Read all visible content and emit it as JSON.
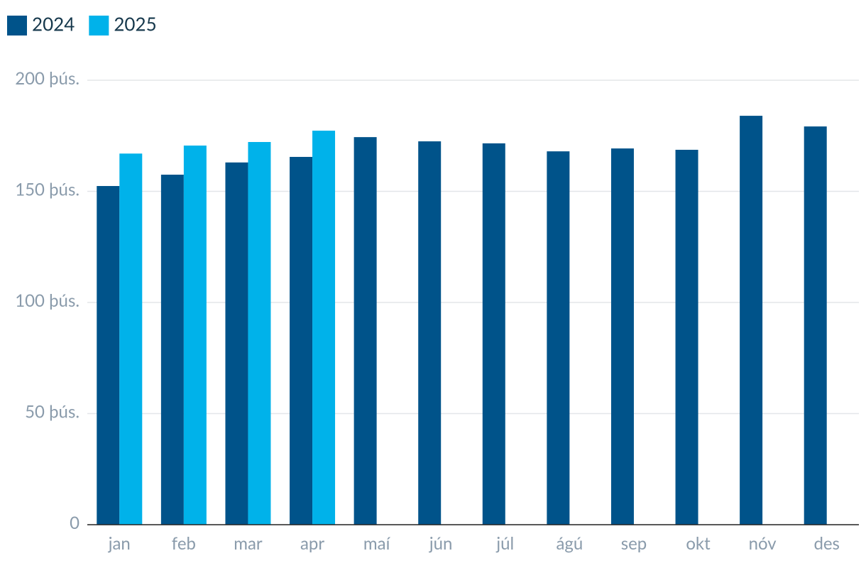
{
  "chart_data": {
    "type": "bar",
    "categories": [
      "jan",
      "feb",
      "mar",
      "apr",
      "maí",
      "jún",
      "júl",
      "ágú",
      "sep",
      "okt",
      "nóv",
      "des"
    ],
    "series": [
      {
        "name": "2024",
        "color": "#00538a",
        "values": [
          152.4,
          157.5,
          163,
          165.5,
          174.4,
          172.5,
          171.6,
          168,
          169.3,
          168.7,
          184,
          179.2
        ]
      },
      {
        "name": "2025",
        "color": "#00b2ea",
        "values": [
          167,
          170.6,
          172.2,
          177.3,
          null,
          null,
          null,
          null,
          null,
          null,
          null,
          null
        ]
      }
    ],
    "ylim": [
      0,
      200
    ],
    "yticks": [
      0,
      {
        "value": 50,
        "label": "50 þús."
      },
      {
        "value": 100,
        "label": "100 þús."
      },
      {
        "value": 150,
        "label": "150 þús."
      },
      {
        "value": 200,
        "label": "200 þús."
      }
    ],
    "grid": true,
    "legend": "top-left"
  }
}
